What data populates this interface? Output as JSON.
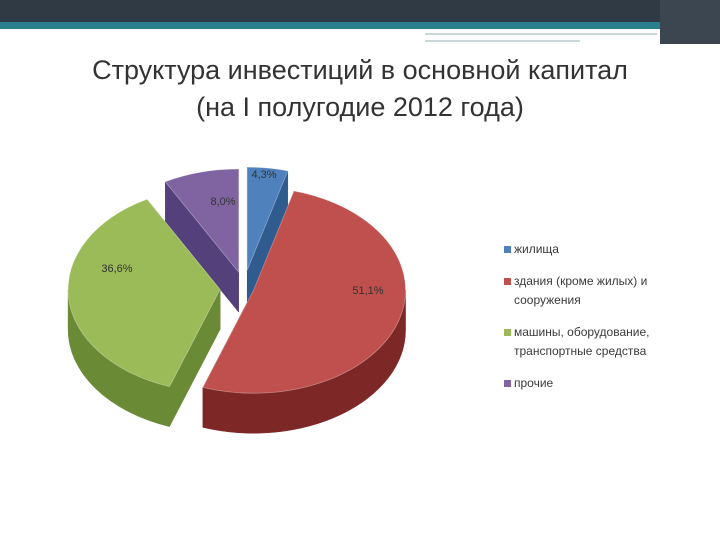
{
  "title": {
    "line1": "Структура инвестиций в основной капитал",
    "line2": "(на I полугодие 2012 года)"
  },
  "chart_data": {
    "type": "pie",
    "style": "3d-exploded",
    "legend_position": "right",
    "categories": [
      "жилища",
      "здания (кроме жилых) и сооружения",
      "машины, оборудование, транспортные средства",
      "прочие"
    ],
    "values": [
      4.3,
      51.1,
      36.6,
      8.0
    ],
    "data_labels": [
      "4,3%",
      "51,1%",
      "36,6%",
      "8,0%"
    ],
    "colors": [
      "#4f81bd",
      "#c0504d",
      "#9bbb59",
      "#8064a2"
    ],
    "side_colors": [
      "#2f5b8f",
      "#7d2826",
      "#6b8a36",
      "#54407a"
    ]
  },
  "legend": [
    {
      "label": "жилища"
    },
    {
      "label": "здания (кроме жилых) и сооружения"
    },
    {
      "label": "машины, оборудование, транспортные средства"
    },
    {
      "label": "прочие"
    }
  ]
}
